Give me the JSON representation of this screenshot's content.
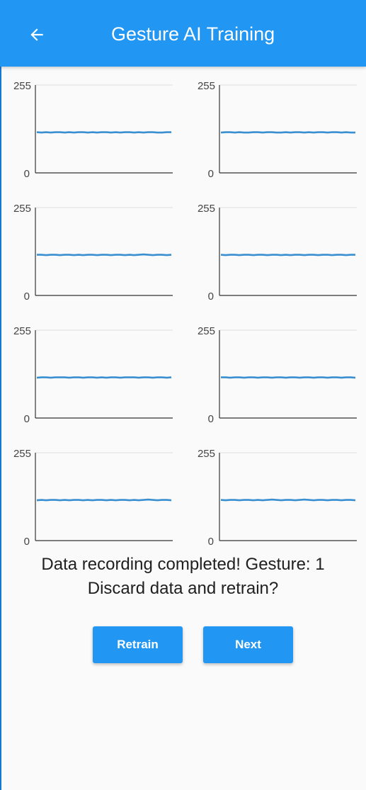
{
  "app_bar": {
    "title": "Gesture AI Training",
    "back_icon": "arrow-back-icon",
    "color": "#2196f3"
  },
  "charts": {
    "y_max_label": "255",
    "y_min_label": "0",
    "ylim": [
      0,
      255
    ],
    "line_color": "#3a8fd0",
    "items": [
      {
        "id": 1,
        "values": [
          118,
          117,
          118,
          117,
          118,
          118,
          117,
          118,
          117,
          118,
          118,
          117,
          118,
          117,
          118,
          118,
          117,
          118,
          117,
          118,
          118,
          117,
          118,
          117,
          118,
          118,
          117,
          117,
          118,
          118
        ]
      },
      {
        "id": 2,
        "values": [
          117,
          118,
          118,
          117,
          118,
          117,
          117,
          118,
          118,
          117,
          118,
          118,
          117,
          117,
          118,
          117,
          118,
          118,
          117,
          118,
          117,
          118,
          118,
          117,
          118,
          118,
          117,
          118,
          117,
          117
        ]
      },
      {
        "id": 3,
        "values": [
          118,
          118,
          117,
          118,
          118,
          117,
          118,
          118,
          117,
          118,
          117,
          118,
          118,
          117,
          118,
          118,
          117,
          118,
          118,
          117,
          118,
          117,
          118,
          119,
          118,
          117,
          118,
          118,
          117,
          118
        ]
      },
      {
        "id": 4,
        "values": [
          118,
          117,
          118,
          118,
          117,
          118,
          118,
          117,
          118,
          118,
          117,
          118,
          118,
          117,
          118,
          117,
          118,
          118,
          117,
          118,
          118,
          117,
          118,
          118,
          117,
          118,
          118,
          117,
          118,
          118
        ]
      },
      {
        "id": 5,
        "values": [
          117,
          118,
          118,
          117,
          118,
          118,
          118,
          117,
          118,
          118,
          117,
          118,
          118,
          117,
          118,
          117,
          118,
          118,
          117,
          118,
          118,
          118,
          117,
          118,
          118,
          117,
          118,
          118,
          117,
          118
        ]
      },
      {
        "id": 6,
        "values": [
          118,
          118,
          117,
          118,
          118,
          117,
          118,
          118,
          117,
          118,
          118,
          117,
          118,
          118,
          117,
          118,
          118,
          117,
          118,
          118,
          117,
          118,
          118,
          117,
          118,
          118,
          117,
          118,
          118,
          117
        ]
      },
      {
        "id": 7,
        "values": [
          117,
          118,
          117,
          118,
          118,
          117,
          118,
          117,
          118,
          118,
          117,
          118,
          117,
          118,
          118,
          117,
          118,
          117,
          118,
          118,
          117,
          118,
          117,
          118,
          119,
          118,
          117,
          118,
          118,
          117
        ]
      },
      {
        "id": 8,
        "values": [
          118,
          117,
          118,
          118,
          117,
          118,
          118,
          117,
          118,
          117,
          118,
          119,
          118,
          117,
          118,
          118,
          117,
          118,
          119,
          118,
          117,
          118,
          118,
          117,
          118,
          118,
          117,
          118,
          118,
          117
        ]
      }
    ]
  },
  "chart_data": [
    {
      "type": "line",
      "ylim": [
        0,
        255
      ],
      "series": [
        {
          "values": [
            118,
            117,
            118,
            117,
            118,
            118,
            117,
            118,
            117,
            118,
            118,
            117,
            118,
            117,
            118,
            118,
            117,
            118,
            117,
            118,
            118,
            117,
            118,
            117,
            118,
            118,
            117,
            117,
            118,
            118
          ]
        }
      ]
    },
    {
      "type": "line",
      "ylim": [
        0,
        255
      ],
      "series": [
        {
          "values": [
            117,
            118,
            118,
            117,
            118,
            117,
            117,
            118,
            118,
            117,
            118,
            118,
            117,
            117,
            118,
            117,
            118,
            118,
            117,
            118,
            117,
            118,
            118,
            117,
            118,
            118,
            117,
            118,
            117,
            117
          ]
        }
      ]
    },
    {
      "type": "line",
      "ylim": [
        0,
        255
      ],
      "series": [
        {
          "values": [
            118,
            118,
            117,
            118,
            118,
            117,
            118,
            118,
            117,
            118,
            117,
            118,
            118,
            117,
            118,
            118,
            117,
            118,
            118,
            117,
            118,
            117,
            118,
            119,
            118,
            117,
            118,
            118,
            117,
            118
          ]
        }
      ]
    },
    {
      "type": "line",
      "ylim": [
        0,
        255
      ],
      "series": [
        {
          "values": [
            118,
            117,
            118,
            118,
            117,
            118,
            118,
            117,
            118,
            118,
            117,
            118,
            118,
            117,
            118,
            117,
            118,
            118,
            117,
            118,
            118,
            117,
            118,
            118,
            117,
            118,
            118,
            117,
            118,
            118
          ]
        }
      ]
    },
    {
      "type": "line",
      "ylim": [
        0,
        255
      ],
      "series": [
        {
          "values": [
            117,
            118,
            118,
            117,
            118,
            118,
            118,
            117,
            118,
            118,
            117,
            118,
            118,
            117,
            118,
            117,
            118,
            118,
            117,
            118,
            118,
            118,
            117,
            118,
            118,
            117,
            118,
            118,
            117,
            118
          ]
        }
      ]
    },
    {
      "type": "line",
      "ylim": [
        0,
        255
      ],
      "series": [
        {
          "values": [
            118,
            118,
            117,
            118,
            118,
            117,
            118,
            118,
            117,
            118,
            118,
            117,
            118,
            118,
            117,
            118,
            118,
            117,
            118,
            118,
            117,
            118,
            118,
            117,
            118,
            118,
            117,
            118,
            118,
            117
          ]
        }
      ]
    },
    {
      "type": "line",
      "ylim": [
        0,
        255
      ],
      "series": [
        {
          "values": [
            117,
            118,
            117,
            118,
            118,
            117,
            118,
            117,
            118,
            118,
            117,
            118,
            117,
            118,
            118,
            117,
            118,
            117,
            118,
            118,
            117,
            118,
            117,
            118,
            119,
            118,
            117,
            118,
            118,
            117
          ]
        }
      ]
    },
    {
      "type": "line",
      "ylim": [
        0,
        255
      ],
      "series": [
        {
          "values": [
            118,
            117,
            118,
            118,
            117,
            118,
            118,
            117,
            118,
            117,
            118,
            119,
            118,
            117,
            118,
            118,
            117,
            118,
            119,
            118,
            117,
            118,
            118,
            117,
            118,
            118,
            117,
            118,
            118,
            117
          ]
        }
      ]
    }
  ],
  "message": {
    "line1": "Data recording completed! Gesture: 1",
    "line2": "Discard data and retrain?"
  },
  "buttons": {
    "retrain_label": "Retrain",
    "next_label": "Next"
  }
}
